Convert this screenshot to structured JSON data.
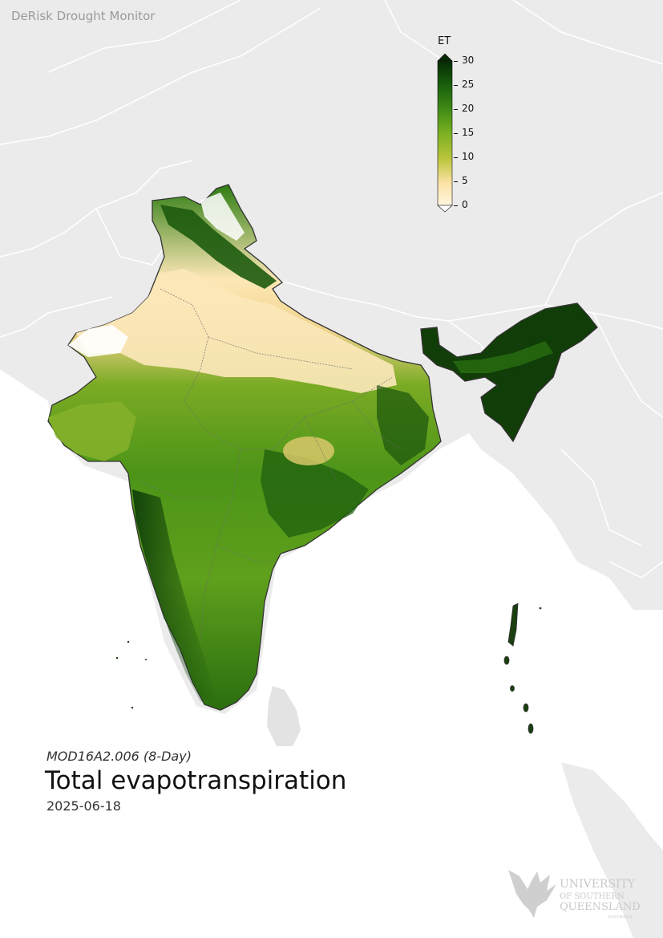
{
  "app_title": "DeRisk Drought Monitor",
  "product": "MOD16A2.006 (8-Day)",
  "title": "Total evapotranspiration",
  "date": "2025-06-18",
  "colorbar": {
    "label": "ET",
    "ticks": [
      "0",
      "5",
      "10",
      "15",
      "20",
      "25",
      "30"
    ],
    "min": 0,
    "max": 30,
    "colors": [
      "#fff6e0",
      "#fde8b0",
      "#d6d36a",
      "#9cbd2a",
      "#5aa01a",
      "#2b7a12",
      "#0f4a0a",
      "#062a04"
    ]
  },
  "logo": {
    "line1": "UNIVERSITY",
    "line2": "OF SOUTHERN",
    "line3": "QUEENSLAND",
    "line4": "AUSTRALIA"
  },
  "colors": {
    "land_background": "#ebebeb",
    "sea": "#ffffff",
    "boundary": "#ffffff",
    "country_outline": "#333333"
  }
}
